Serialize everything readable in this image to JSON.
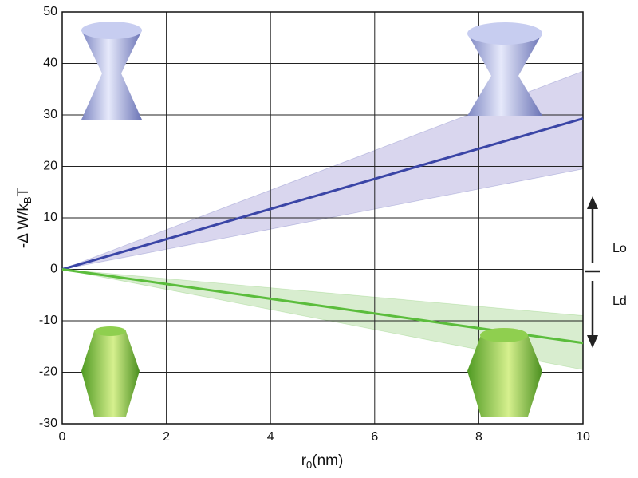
{
  "chart_data": {
    "type": "line",
    "x_label": [
      "r",
      "0",
      "(nm)"
    ],
    "y_label": [
      "-Δ W/k",
      "B",
      "T"
    ],
    "x": [
      0,
      10
    ],
    "series": [
      {
        "color": "#3a45a6",
        "band_color": "#d9d6ee",
        "values": [
          0,
          29.3
        ],
        "lower": [
          0,
          19.5
        ],
        "upper": [
          0,
          38.5
        ]
      },
      {
        "color": "#5bbd3c",
        "band_color": "#d8edcf",
        "values": [
          0,
          -14.3
        ],
        "lower": [
          0,
          -19.5
        ],
        "upper": [
          0,
          -9
        ]
      }
    ],
    "xlim": [
      0,
      10
    ],
    "xticks": [
      0,
      2,
      4,
      6,
      8,
      10
    ],
    "ylim": [
      -30,
      50
    ],
    "yticks": [
      -30,
      -20,
      -10,
      0,
      10,
      20,
      30,
      40,
      50
    ],
    "grid": true,
    "annotations": [
      "Lo",
      "Ld"
    ]
  }
}
